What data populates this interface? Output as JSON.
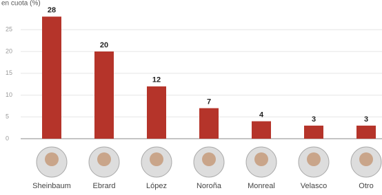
{
  "chart_data": {
    "type": "bar",
    "subtitle": "en cuota (%)",
    "categories": [
      "Sheinbaum",
      "Ebrard",
      "López",
      "Noroña",
      "Monreal",
      "Velasco",
      "Otro"
    ],
    "values": [
      28,
      20,
      12,
      7,
      4,
      3,
      3
    ],
    "color": "#b5342a",
    "ylim": [
      0,
      30
    ],
    "yticks": [
      0,
      5,
      10,
      15,
      20,
      25
    ],
    "grid": true
  }
}
